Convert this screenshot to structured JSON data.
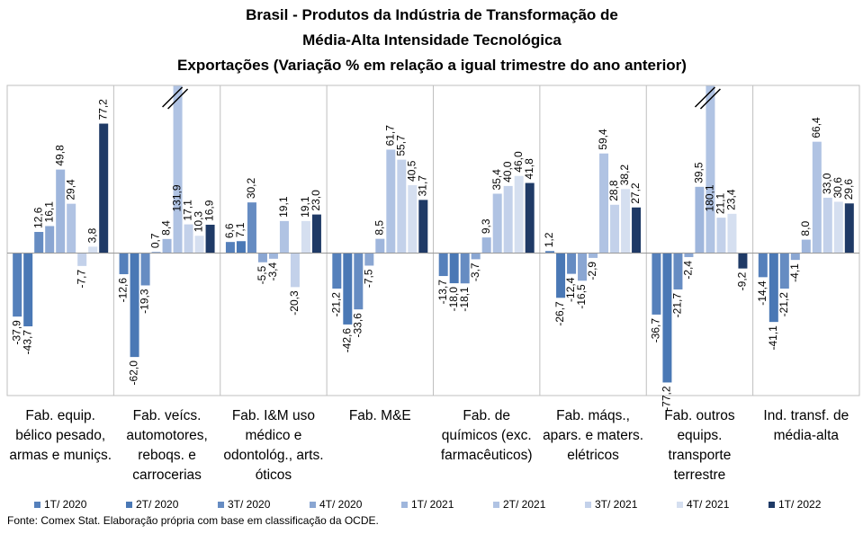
{
  "chart_data": {
    "type": "bar",
    "title": [
      "Brasil - Produtos da Indústria de Transformação de",
      "Média-Alta Intensidade Tecnológica",
      "Exportações (Variação % em relação a igual trimestre do ano anterior)"
    ],
    "categories": [
      "Fab. equip. bélico pesado, armas e muniçs.",
      "Fab. veícs. automotores, reboqs. e carrocerias",
      "Fab. I&M uso médico e odontológ., arts. óticos",
      "Fab. M&E",
      "Fab. de químicos (exc. farmacêuticos)",
      "Fab. máqs., apars. e maters. elétricos",
      "Fab. outros equips. transporte terrestre",
      "Ind. transf. de média-alta"
    ],
    "series": [
      {
        "name": "1T/ 2020",
        "color": "#5580bb",
        "values": [
          -37.9,
          -12.6,
          6.6,
          -21.2,
          -13.7,
          1.2,
          -36.7,
          -14.4
        ],
        "value_labels": [
          "-37,9",
          "-12,6",
          "6,6",
          "-21,2",
          "-13,7",
          "1,2",
          "-36,7",
          "-14,4"
        ]
      },
      {
        "name": "2T/ 2020",
        "color": "#4a78b5",
        "values": [
          -43.7,
          -62.0,
          7.1,
          -42.6,
          -18.0,
          -26.7,
          -77.2,
          -41.1
        ],
        "value_labels": [
          "-43,7",
          "-62,0",
          "7,1",
          "-42,6",
          "-18,0",
          "-26,7",
          "-77,2",
          "-41,1"
        ]
      },
      {
        "name": "3T/ 2020",
        "color": "#668cc2",
        "values": [
          12.6,
          -19.3,
          30.2,
          -33.6,
          -18.1,
          -12.4,
          -21.7,
          -21.2
        ],
        "value_labels": [
          "12,6",
          "-19,3",
          "30,2",
          "-33,6",
          "-18,1",
          "-12,4",
          "-21,7",
          "-21,2"
        ]
      },
      {
        "name": "4T/ 2020",
        "color": "#8aa6d2",
        "values": [
          16.1,
          0.7,
          -5.5,
          -7.5,
          -3.7,
          -16.5,
          -2.4,
          -4.1
        ],
        "value_labels": [
          "16,1",
          "0,7",
          "-5,5",
          "-7,5",
          "-3,7",
          "-16,5",
          "-2,4",
          "-4,1"
        ]
      },
      {
        "name": "1T/ 2021",
        "color": "#9fb6dc",
        "values": [
          49.8,
          8.4,
          -3.4,
          8.5,
          9.3,
          -2.9,
          39.5,
          8.0
        ],
        "value_labels": [
          "49,8",
          "8,4",
          "-3,4",
          "8,5",
          "9,3",
          "-2,9",
          "39,5",
          "8,0"
        ]
      },
      {
        "name": "2T/ 2021",
        "color": "#b0c3e3",
        "values": [
          29.4,
          131.9,
          19.1,
          61.7,
          35.4,
          59.4,
          180.1,
          66.4
        ],
        "value_labels": [
          "29,4",
          "131,9",
          "19,1",
          "61,7",
          "35,4",
          "59,4",
          "180,1",
          "66,4"
        ]
      },
      {
        "name": "3T/ 2021",
        "color": "#c3d1ea",
        "values": [
          -7.7,
          17.1,
          -20.3,
          55.7,
          40.0,
          28.8,
          21.1,
          33.0
        ],
        "value_labels": [
          "-7,7",
          "17,1",
          "-20,3",
          "55,7",
          "40,0",
          "28,8",
          "21,1",
          "33,0"
        ]
      },
      {
        "name": "4T/ 2021",
        "color": "#d5dff0",
        "values": [
          3.8,
          10.3,
          19.1,
          40.5,
          46.0,
          38.2,
          23.4,
          30.6
        ],
        "value_labels": [
          "3,8",
          "10,3",
          "19,1",
          "40,5",
          "46,0",
          "38,2",
          "23,4",
          "30,6"
        ]
      },
      {
        "name": "1T/ 2022",
        "color": "#1f3a66",
        "values": [
          77.2,
          16.9,
          23.0,
          31.7,
          41.8,
          27.2,
          -9.2,
          29.6
        ],
        "value_labels": [
          "77,2",
          "16,9",
          "23,0",
          "31,7",
          "41,8",
          "27,2",
          "-9,2",
          "29,6"
        ]
      }
    ],
    "ylim": [
      -85,
      100
    ],
    "source": "Fonte: Comex Stat. Elaboração própria com base em classificação da OCDE."
  }
}
